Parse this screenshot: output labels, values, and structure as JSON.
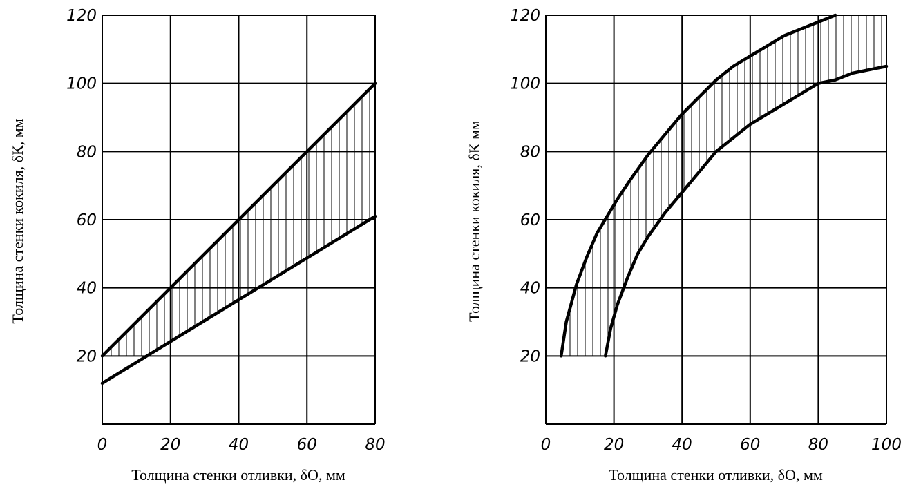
{
  "chart_data": [
    {
      "type": "area",
      "title": "",
      "xlabel": "Толщина стенки отливки, δО, мм",
      "ylabel": "Толщина стенки кокиля, δК, мм",
      "xlim": [
        0,
        80
      ],
      "ylim": [
        0,
        120
      ],
      "xticks": [
        0,
        20,
        40,
        60,
        80
      ],
      "yticks": [
        20,
        40,
        60,
        80,
        100,
        120
      ],
      "grid": true,
      "shading": "vertical hatch between the two curves, for y ≥ 20",
      "series": [
        {
          "x": [
            0,
            80
          ],
          "y": [
            20,
            100
          ]
        },
        {
          "x": [
            0,
            80
          ],
          "y": [
            12,
            61
          ]
        }
      ]
    },
    {
      "type": "area",
      "title": "",
      "xlabel": "Толщина стенки отливки, δО, мм",
      "ylabel": "Толщина стенки кокиля, δК мм",
      "xlim": [
        0,
        100
      ],
      "ylim": [
        0,
        120
      ],
      "xticks": [
        0,
        20,
        40,
        60,
        80,
        100
      ],
      "yticks": [
        20,
        40,
        60,
        80,
        100,
        120
      ],
      "grid": true,
      "shading": "vertical hatch between the two curves, for y ≥ 20",
      "series": [
        {
          "x": [
            4.5,
            6,
            9,
            12,
            15,
            18,
            21,
            25,
            30,
            35,
            40,
            45,
            50,
            55,
            60,
            65,
            70,
            75,
            80,
            85
          ],
          "y": [
            20,
            30,
            41,
            49,
            56,
            61,
            66,
            72,
            79,
            85,
            91,
            96,
            101,
            105,
            108,
            111,
            114,
            116,
            118,
            120
          ]
        },
        {
          "x": [
            17.5,
            19,
            21,
            24,
            27,
            30,
            35,
            40,
            45,
            50,
            55,
            60,
            65,
            70,
            75,
            80,
            85,
            90,
            95,
            100
          ],
          "y": [
            20,
            28,
            35,
            43,
            50,
            55,
            62,
            68,
            74,
            80,
            84,
            88,
            91,
            94,
            97,
            100,
            101,
            103,
            104,
            105
          ]
        }
      ]
    }
  ]
}
